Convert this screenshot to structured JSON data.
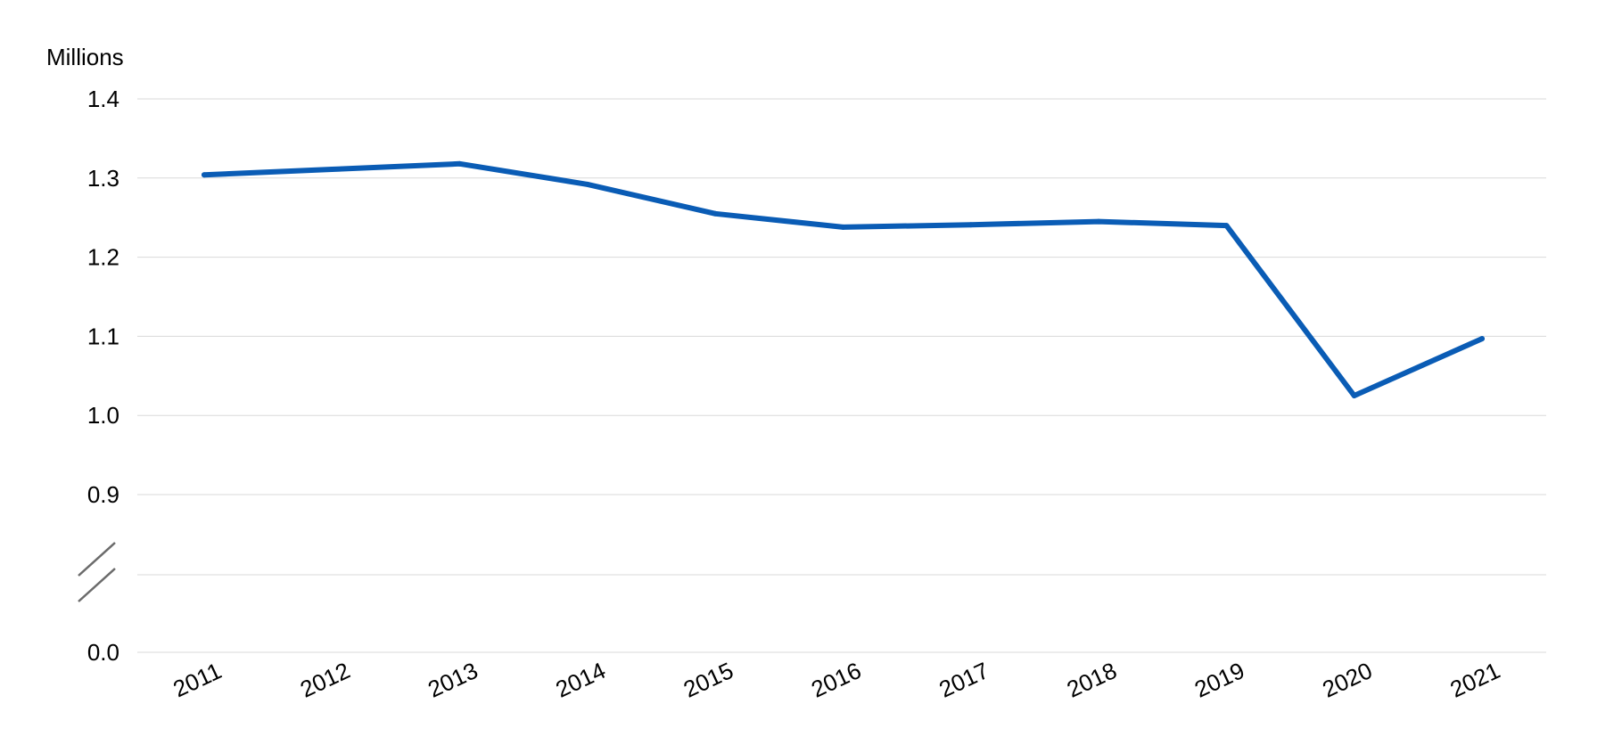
{
  "chart_data": {
    "type": "line",
    "title": "",
    "xlabel": "",
    "ylabel": "Millions",
    "x": [
      "2011",
      "2012",
      "2013",
      "2014",
      "2015",
      "2016",
      "2017",
      "2018",
      "2019",
      "2020",
      "2021"
    ],
    "series": [
      {
        "values": [
          1.304,
          1.311,
          1.318,
          1.292,
          1.255,
          1.238,
          1.241,
          1.245,
          1.24,
          1.025,
          1.097
        ],
        "color": "#0a5cb5"
      }
    ],
    "yticks": [
      "0.0",
      "0.9",
      "1.0",
      "1.1",
      "1.2",
      "1.3",
      "1.4"
    ],
    "ylim": [
      0.0,
      1.4
    ],
    "axis_break": "between 0.0 and 0.9",
    "grid": true,
    "legend": "none"
  }
}
